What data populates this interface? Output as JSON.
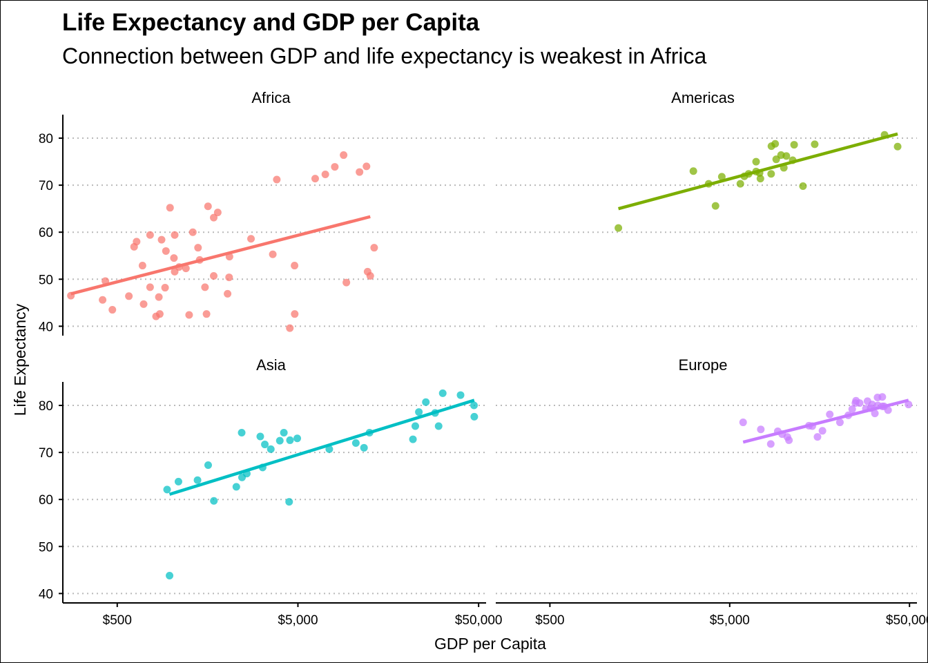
{
  "chart_data": {
    "type": "scatter",
    "title": "Life Expectancy and GDP per Capita",
    "subtitle": "Connection between GDP and life expectancy is weakest in Africa",
    "xlabel": "GDP per Capita",
    "ylabel": "Life Expectancy",
    "x_scale": "log10",
    "xlim": [
      250,
      55000
    ],
    "ylim": [
      38,
      85
    ],
    "x_ticks": [
      500,
      5000,
      50000
    ],
    "x_tick_labels": [
      "$500",
      "$5,000",
      "$50,000"
    ],
    "y_ticks": [
      40,
      50,
      60,
      70,
      80
    ],
    "y_tick_labels": [
      "40",
      "50",
      "60",
      "70",
      "80"
    ],
    "grid": "horizontal dotted",
    "legend": "none",
    "panels": [
      {
        "name": "Africa",
        "color": "#F8766D",
        "fit_line": {
          "x": [
            277,
            12568
          ],
          "y": [
            46.9,
            63.3
          ]
        },
        "points": [
          [
            277,
            46.5
          ],
          [
            430,
            49.6
          ],
          [
            415,
            45.6
          ],
          [
            470,
            43.5
          ],
          [
            580,
            46.4
          ],
          [
            620,
            56.9
          ],
          [
            640,
            58.0
          ],
          [
            690,
            52.9
          ],
          [
            700,
            44.7
          ],
          [
            760,
            48.3
          ],
          [
            760,
            59.4
          ],
          [
            820,
            42.1
          ],
          [
            850,
            46.2
          ],
          [
            860,
            42.6
          ],
          [
            880,
            58.4
          ],
          [
            920,
            48.2
          ],
          [
            930,
            56.0
          ],
          [
            980,
            65.2
          ],
          [
            1030,
            54.5
          ],
          [
            1040,
            59.4
          ],
          [
            1040,
            51.6
          ],
          [
            1100,
            52.6
          ],
          [
            1200,
            52.3
          ],
          [
            1250,
            42.4
          ],
          [
            1310,
            60.0
          ],
          [
            1400,
            56.7
          ],
          [
            1430,
            54.1
          ],
          [
            1530,
            48.3
          ],
          [
            1560,
            42.6
          ],
          [
            1590,
            65.5
          ],
          [
            1710,
            50.7
          ],
          [
            1710,
            63.1
          ],
          [
            1800,
            64.2
          ],
          [
            2040,
            46.9
          ],
          [
            2080,
            50.4
          ],
          [
            2090,
            54.8
          ],
          [
            2750,
            58.6
          ],
          [
            3630,
            55.3
          ],
          [
            3820,
            71.2
          ],
          [
            4510,
            39.6
          ],
          [
            4790,
            52.9
          ],
          [
            4800,
            42.6
          ],
          [
            6230,
            71.4
          ],
          [
            7090,
            72.3
          ],
          [
            8000,
            73.9
          ],
          [
            8950,
            76.4
          ],
          [
            9270,
            49.3
          ],
          [
            10960,
            72.8
          ],
          [
            11980,
            74.0
          ],
          [
            12150,
            51.6
          ],
          [
            12570,
            50.7
          ],
          [
            13210,
            56.7
          ]
        ]
      },
      {
        "name": "Americas",
        "color": "#7CAE00",
        "fit_line": {
          "x": [
            1202,
            42952
          ],
          "y": [
            65.0,
            80.9
          ]
        },
        "points": [
          [
            1202,
            60.9
          ],
          [
            3140,
            73.0
          ],
          [
            3820,
            70.3
          ],
          [
            4170,
            65.6
          ],
          [
            4520,
            71.8
          ],
          [
            5730,
            70.3
          ],
          [
            6030,
            71.9
          ],
          [
            6370,
            72.4
          ],
          [
            7010,
            72.9
          ],
          [
            7010,
            75.0
          ],
          [
            7330,
            72.6
          ],
          [
            7410,
            71.4
          ],
          [
            8500,
            72.4
          ],
          [
            8530,
            78.3
          ],
          [
            8950,
            78.8
          ],
          [
            9070,
            75.5
          ],
          [
            9650,
            76.4
          ],
          [
            10000,
            73.7
          ],
          [
            10330,
            76.2
          ],
          [
            11200,
            75.3
          ],
          [
            11410,
            78.6
          ],
          [
            12780,
            69.8
          ],
          [
            14850,
            78.7
          ],
          [
            36320,
            80.7
          ],
          [
            42950,
            78.2
          ]
        ]
      },
      {
        "name": "Asia",
        "color": "#00BFC4",
        "fit_line": {
          "x": [
            974,
            47307
          ],
          "y": [
            61.1,
            81.1
          ]
        },
        "points": [
          [
            944,
            62.1
          ],
          [
            974,
            43.8
          ],
          [
            1091,
            63.8
          ],
          [
            1391,
            64.1
          ],
          [
            1593,
            67.3
          ],
          [
            1713,
            59.7
          ],
          [
            2281,
            62.7
          ],
          [
            2442,
            74.2
          ],
          [
            2452,
            64.7
          ],
          [
            2606,
            65.5
          ],
          [
            3095,
            73.4
          ],
          [
            3190,
            66.8
          ],
          [
            3280,
            71.7
          ],
          [
            3540,
            70.7
          ],
          [
            3970,
            72.5
          ],
          [
            4180,
            74.2
          ],
          [
            4471,
            59.5
          ],
          [
            4519,
            72.6
          ],
          [
            4959,
            73.0
          ],
          [
            7458,
            70.7
          ],
          [
            10461,
            72.0
          ],
          [
            11606,
            71.0
          ],
          [
            12452,
            74.2
          ],
          [
            21655,
            72.8
          ],
          [
            22316,
            75.6
          ],
          [
            23348,
            78.6
          ],
          [
            25523,
            80.7
          ],
          [
            28718,
            78.4
          ],
          [
            30035,
            75.6
          ],
          [
            31656,
            82.6
          ],
          [
            39725,
            82.2
          ],
          [
            47143,
            80.0
          ],
          [
            47307,
            77.6
          ]
        ]
      },
      {
        "name": "Europe",
        "color": "#C77CFF",
        "fit_line": {
          "x": [
            5937,
            49357
          ],
          "y": [
            72.2,
            81.1
          ]
        },
        "points": [
          [
            5937,
            76.4
          ],
          [
            7446,
            74.9
          ],
          [
            8460,
            71.8
          ],
          [
            9253,
            74.5
          ],
          [
            9786,
            73.9
          ],
          [
            10461,
            73.3
          ],
          [
            10681,
            72.6
          ],
          [
            13800,
            75.7
          ],
          [
            14400,
            75.6
          ],
          [
            15389,
            73.3
          ],
          [
            16400,
            74.6
          ],
          [
            18009,
            78.1
          ],
          [
            20510,
            76.4
          ],
          [
            22833,
            77.9
          ],
          [
            24000,
            79.2
          ],
          [
            25000,
            80.5
          ],
          [
            25200,
            81.0
          ],
          [
            26400,
            80.5
          ],
          [
            28600,
            79.3
          ],
          [
            29200,
            80.9
          ],
          [
            30400,
            79.4
          ],
          [
            31000,
            80.2
          ],
          [
            32100,
            78.3
          ],
          [
            33200,
            81.7
          ],
          [
            33300,
            80.0
          ],
          [
            35300,
            79.8
          ],
          [
            35300,
            81.8
          ],
          [
            36100,
            79.8
          ],
          [
            38000,
            79.0
          ],
          [
            49357,
            80.2
          ]
        ]
      }
    ]
  }
}
